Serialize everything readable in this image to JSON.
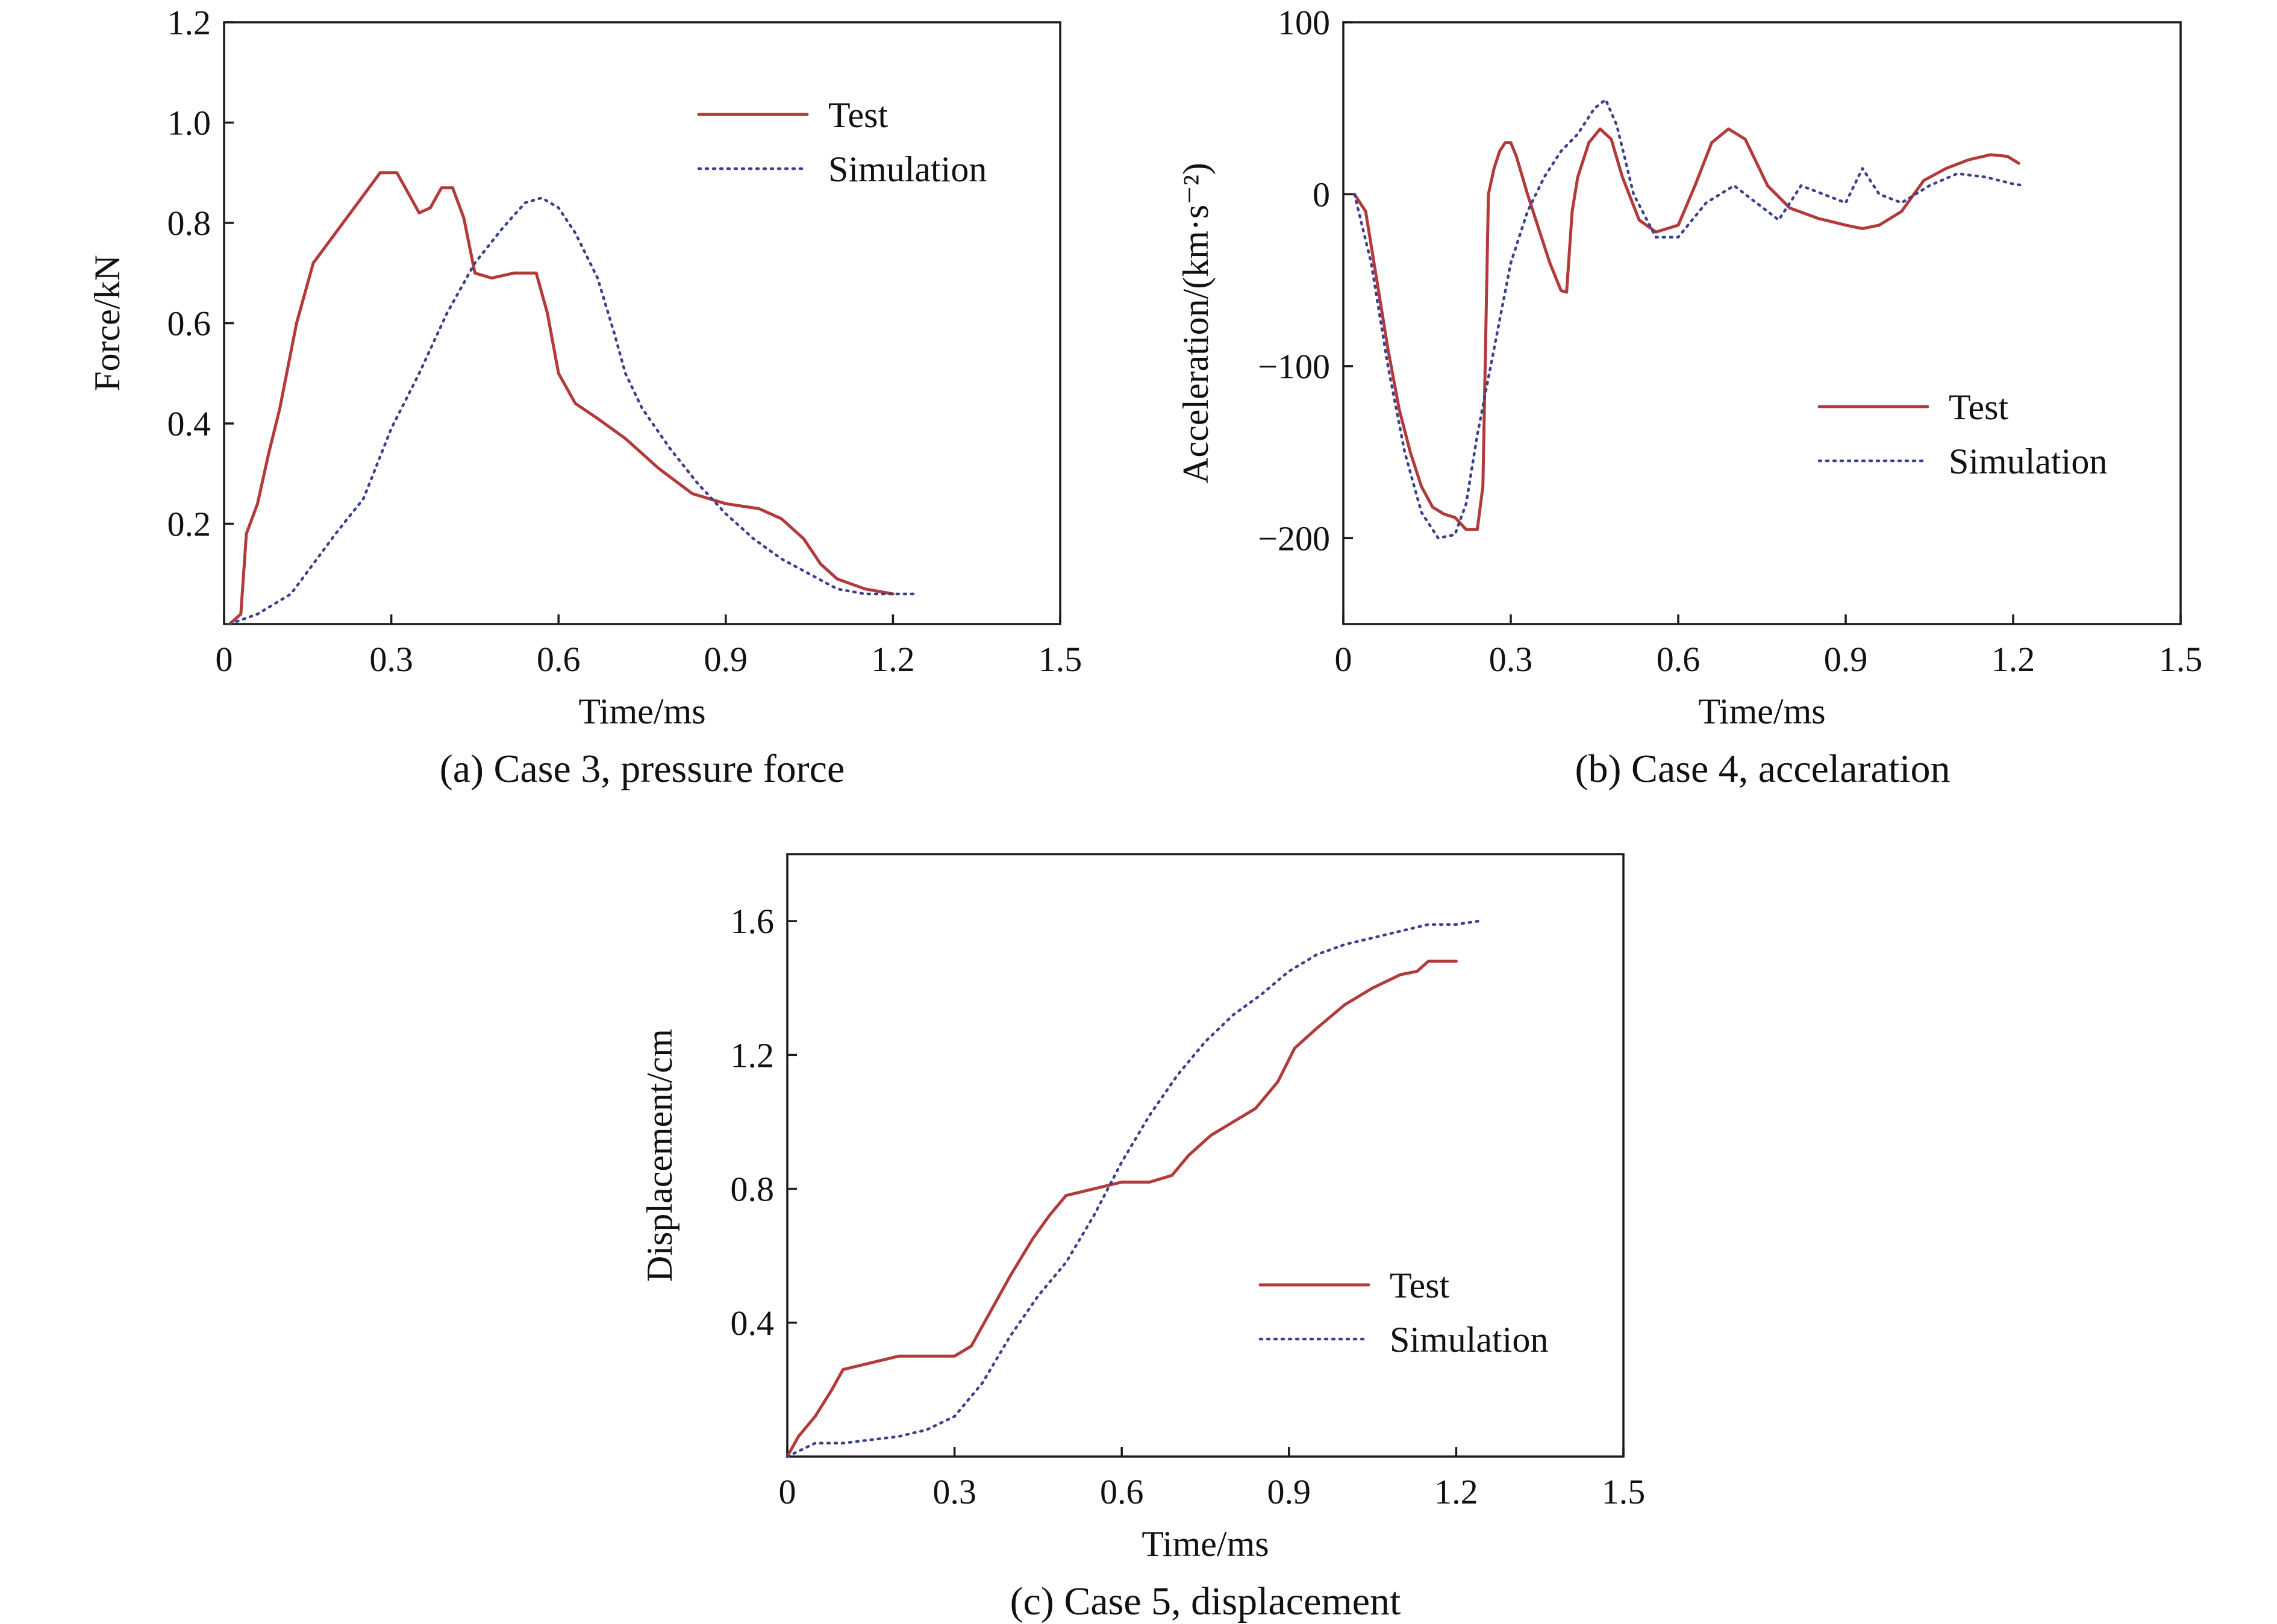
{
  "colors": {
    "test": "#b23a3a",
    "simulation": "#3a3f8f",
    "axis": "#1a1a1a"
  },
  "chart_data": [
    {
      "type": "line",
      "caption": "(a) Case 3, pressure force",
      "xlabel": "Time/ms",
      "ylabel": "Force/kN",
      "xlim": [
        0,
        1.5
      ],
      "ylim": [
        0,
        1.2
      ],
      "xticks": [
        0,
        0.3,
        0.6,
        0.9,
        1.2,
        1.5
      ],
      "xtick_labels": [
        "0",
        "0.3",
        "0.6",
        "0.9",
        "1.2",
        "1.5"
      ],
      "yticks": [
        0.2,
        0.4,
        0.6,
        0.8,
        1.0,
        1.2
      ],
      "ytick_labels": [
        "0.2",
        "0.4",
        "0.6",
        "0.8",
        "1.0",
        "1.2"
      ],
      "grid": false,
      "legend_position": "top-right",
      "series": [
        {
          "name": "Test",
          "style": "solid",
          "x": [
            0.01,
            0.03,
            0.04,
            0.06,
            0.08,
            0.1,
            0.13,
            0.16,
            0.2,
            0.24,
            0.28,
            0.31,
            0.33,
            0.35,
            0.37,
            0.39,
            0.41,
            0.43,
            0.45,
            0.48,
            0.52,
            0.56,
            0.58,
            0.6,
            0.63,
            0.67,
            0.72,
            0.78,
            0.84,
            0.9,
            0.96,
            1.0,
            1.04,
            1.07,
            1.1,
            1.15,
            1.2
          ],
          "y": [
            0.0,
            0.02,
            0.18,
            0.24,
            0.34,
            0.43,
            0.6,
            0.72,
            0.78,
            0.84,
            0.9,
            0.9,
            0.86,
            0.82,
            0.83,
            0.87,
            0.87,
            0.81,
            0.7,
            0.69,
            0.7,
            0.7,
            0.62,
            0.5,
            0.44,
            0.41,
            0.37,
            0.31,
            0.26,
            0.24,
            0.23,
            0.21,
            0.17,
            0.12,
            0.09,
            0.07,
            0.06
          ]
        },
        {
          "name": "Simulation",
          "style": "dotted",
          "x": [
            0.01,
            0.06,
            0.12,
            0.16,
            0.2,
            0.25,
            0.3,
            0.35,
            0.4,
            0.45,
            0.5,
            0.54,
            0.57,
            0.6,
            0.63,
            0.67,
            0.7,
            0.72,
            0.75,
            0.8,
            0.85,
            0.9,
            0.95,
            1.0,
            1.05,
            1.1,
            1.15,
            1.2,
            1.24
          ],
          "y": [
            0.0,
            0.02,
            0.06,
            0.12,
            0.18,
            0.25,
            0.39,
            0.5,
            0.62,
            0.72,
            0.79,
            0.84,
            0.85,
            0.83,
            0.78,
            0.69,
            0.58,
            0.5,
            0.43,
            0.35,
            0.28,
            0.22,
            0.17,
            0.13,
            0.1,
            0.07,
            0.06,
            0.06,
            0.06
          ]
        }
      ]
    },
    {
      "type": "line",
      "caption": "(b) Case 4, accelaration",
      "xlabel": "Time/ms",
      "ylabel": "Acceleration/(km·s⁻²)",
      "xlim": [
        0,
        1.5
      ],
      "ylim": [
        -250,
        100
      ],
      "xticks": [
        0,
        0.3,
        0.6,
        0.9,
        1.2,
        1.5
      ],
      "xtick_labels": [
        "0",
        "0.3",
        "0.6",
        "0.9",
        "1.2",
        "1.5"
      ],
      "yticks": [
        -200,
        -100,
        0,
        100
      ],
      "ytick_labels": [
        "−200",
        "−100",
        "0",
        "100"
      ],
      "grid": false,
      "legend_position": "right",
      "series": [
        {
          "name": "Test",
          "style": "solid",
          "x": [
            0.02,
            0.04,
            0.06,
            0.08,
            0.1,
            0.12,
            0.14,
            0.16,
            0.18,
            0.2,
            0.22,
            0.24,
            0.25,
            0.26,
            0.27,
            0.28,
            0.29,
            0.3,
            0.31,
            0.33,
            0.35,
            0.37,
            0.39,
            0.4,
            0.41,
            0.42,
            0.44,
            0.46,
            0.48,
            0.5,
            0.53,
            0.56,
            0.6,
            0.63,
            0.66,
            0.69,
            0.72,
            0.76,
            0.8,
            0.85,
            0.9,
            0.93,
            0.96,
            1.0,
            1.04,
            1.08,
            1.12,
            1.16,
            1.19,
            1.21
          ],
          "y": [
            0,
            -10,
            -50,
            -90,
            -125,
            -150,
            -170,
            -182,
            -186,
            -188,
            -195,
            -195,
            -170,
            0,
            15,
            25,
            30,
            30,
            22,
            0,
            -20,
            -40,
            -56,
            -57,
            -10,
            10,
            30,
            38,
            32,
            10,
            -15,
            -22,
            -18,
            5,
            30,
            38,
            32,
            5,
            -8,
            -14,
            -18,
            -20,
            -18,
            -10,
            8,
            15,
            20,
            23,
            22,
            18
          ]
        },
        {
          "name": "Simulation",
          "style": "dotted",
          "x": [
            0.02,
            0.05,
            0.08,
            0.11,
            0.14,
            0.17,
            0.2,
            0.22,
            0.24,
            0.27,
            0.3,
            0.33,
            0.36,
            0.39,
            0.42,
            0.45,
            0.47,
            0.49,
            0.52,
            0.56,
            0.6,
            0.65,
            0.7,
            0.74,
            0.78,
            0.82,
            0.86,
            0.9,
            0.93,
            0.96,
            1.0,
            1.05,
            1.1,
            1.15,
            1.2,
            1.22
          ],
          "y": [
            0,
            -40,
            -100,
            -150,
            -185,
            -200,
            -198,
            -180,
            -140,
            -90,
            -40,
            -10,
            10,
            25,
            35,
            50,
            55,
            40,
            0,
            -25,
            -25,
            -5,
            5,
            -5,
            -15,
            5,
            0,
            -5,
            15,
            0,
            -5,
            5,
            12,
            10,
            6,
            5
          ]
        }
      ]
    },
    {
      "type": "line",
      "caption": "(c) Case 5, displacement",
      "xlabel": "Time/ms",
      "ylabel": "Displacement/cm",
      "xlim": [
        0,
        1.5
      ],
      "ylim": [
        0,
        1.8
      ],
      "xticks": [
        0,
        0.3,
        0.6,
        0.9,
        1.2,
        1.5
      ],
      "xtick_labels": [
        "0",
        "0.3",
        "0.6",
        "0.9",
        "1.2",
        "1.5"
      ],
      "yticks": [
        0.4,
        0.8,
        1.2,
        1.6
      ],
      "ytick_labels": [
        "0.4",
        "0.8",
        "1.2",
        "1.6"
      ],
      "grid": false,
      "legend_position": "bottom-right",
      "series": [
        {
          "name": "Test",
          "style": "solid",
          "x": [
            0.0,
            0.02,
            0.05,
            0.08,
            0.1,
            0.15,
            0.2,
            0.25,
            0.3,
            0.33,
            0.36,
            0.4,
            0.44,
            0.47,
            0.5,
            0.55,
            0.6,
            0.65,
            0.69,
            0.72,
            0.76,
            0.8,
            0.84,
            0.88,
            0.91,
            0.95,
            1.0,
            1.05,
            1.1,
            1.13,
            1.15,
            1.2
          ],
          "y": [
            0.0,
            0.06,
            0.12,
            0.2,
            0.26,
            0.28,
            0.3,
            0.3,
            0.3,
            0.33,
            0.42,
            0.54,
            0.65,
            0.72,
            0.78,
            0.8,
            0.82,
            0.82,
            0.84,
            0.9,
            0.96,
            1.0,
            1.04,
            1.12,
            1.22,
            1.28,
            1.35,
            1.4,
            1.44,
            1.45,
            1.48,
            1.48
          ]
        },
        {
          "name": "Simulation",
          "style": "dotted",
          "x": [
            0.0,
            0.05,
            0.1,
            0.15,
            0.2,
            0.25,
            0.3,
            0.35,
            0.4,
            0.45,
            0.5,
            0.55,
            0.6,
            0.65,
            0.7,
            0.75,
            0.8,
            0.85,
            0.9,
            0.95,
            1.0,
            1.05,
            1.1,
            1.15,
            1.2,
            1.24
          ],
          "y": [
            0.0,
            0.04,
            0.04,
            0.05,
            0.06,
            0.08,
            0.12,
            0.22,
            0.36,
            0.48,
            0.58,
            0.72,
            0.88,
            1.02,
            1.14,
            1.24,
            1.32,
            1.38,
            1.45,
            1.5,
            1.53,
            1.55,
            1.57,
            1.59,
            1.59,
            1.6
          ]
        }
      ]
    }
  ]
}
